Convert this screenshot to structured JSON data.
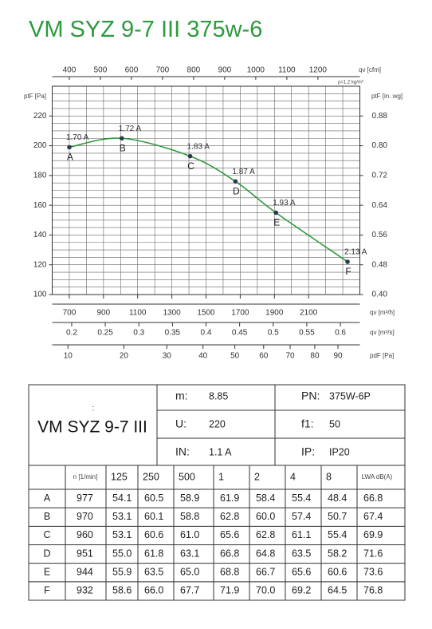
{
  "header": {
    "title": "VM SYZ 9-7 III 375w-6"
  },
  "chart_data": {
    "type": "line",
    "xlabel": "qv [m³/h]",
    "ylabel": "ptF [Pa]",
    "y2label": "ptF [in. wg]",
    "note": "ρ=1.2 kg/m³",
    "x": [
      700,
      1007,
      1407,
      1672,
      1909,
      2328
    ],
    "series": [
      {
        "color": "#2e9a3e",
        "marker_color": "#2b3a4a",
        "values": [
          199,
          205,
          193,
          176,
          155,
          122
        ],
        "point_names": [
          "A",
          "B",
          "C",
          "D",
          "E",
          "F"
        ],
        "annotations": [
          "1.70 A",
          "1.72 A",
          "1.83 A",
          "1.87 A",
          "1.93 A",
          "2.13 A"
        ]
      }
    ],
    "xlim": [
      600,
      2400
    ],
    "xticks": [
      700,
      900,
      1100,
      1300,
      1500,
      1700,
      1900,
      2100
    ],
    "ylim": [
      100,
      240
    ],
    "yticks": [
      100,
      120,
      140,
      160,
      180,
      200,
      220
    ],
    "y2lim": [
      0.4,
      0.96
    ],
    "y2ticks": [
      {
        "value": 0.4,
        "label": "0.40"
      },
      0.48,
      0.56,
      0.64,
      0.72,
      {
        "value": 0.8,
        "label": "0.80"
      },
      0.88
    ],
    "grid": {
      "x_step": 100,
      "y_step": 5
    },
    "top_axis": {
      "label": "qv [cfm]",
      "lim": [
        345,
        1335
      ],
      "ticks": [
        400,
        500,
        600,
        700,
        800,
        900,
        1000,
        1100,
        1200
      ]
    },
    "bottom_axes": [
      {
        "label": "qv [m³/s]",
        "lim": [
          0.171,
          0.629
        ],
        "scale": "linear",
        "ticks": [
          0.2,
          0.25,
          0.3,
          0.35,
          0.4,
          0.45,
          0.5,
          0.55,
          0.6
        ]
      },
      {
        "label": "pdF [Pa]",
        "lim": [
          7.8,
          100
        ],
        "scale": "sqrt",
        "ticks": [
          10,
          20,
          30,
          40,
          50,
          60,
          70,
          80,
          90
        ]
      }
    ]
  },
  "table": {
    "colon": ":",
    "model": "VM SYZ 9-7 III",
    "specs": [
      [
        "m:",
        "8.85"
      ],
      [
        "U:",
        "220"
      ],
      [
        "IN:",
        "1.1  A"
      ]
    ],
    "specs2": [
      [
        "PN:",
        "375W-6P"
      ],
      [
        "f1:",
        "50"
      ],
      [
        "IP:",
        "IP20"
      ]
    ],
    "columns": [
      "n [1/min]",
      "125",
      "250",
      "500",
      "1",
      "2",
      "4",
      "8",
      "LWA dB(A)"
    ],
    "rows": [
      [
        "A",
        "977",
        "54.1",
        "60.5",
        "58.9",
        "61.9",
        "58.4",
        "55.4",
        "48.4",
        "66.8"
      ],
      [
        "B",
        "970",
        "53.1",
        "60.1",
        "58.8",
        "62.8",
        "60.0",
        "57.4",
        "50.7",
        "67.4"
      ],
      [
        "C",
        "960",
        "53.1",
        "60.6",
        "61.0",
        "65.6",
        "62.8",
        "61.1",
        "55.4",
        "69.9"
      ],
      [
        "D",
        "951",
        "55.0",
        "61.8",
        "63.1",
        "66.8",
        "64.8",
        "63.5",
        "58.2",
        "71.6"
      ],
      [
        "E",
        "944",
        "55.9",
        "63.5",
        "65.0",
        "68.8",
        "66.7",
        "65.6",
        "60.6",
        "73.6"
      ],
      [
        "F",
        "932",
        "58.6",
        "66.0",
        "67.7",
        "71.9",
        "70.0",
        "69.2",
        "64.5",
        "76.8"
      ]
    ]
  }
}
